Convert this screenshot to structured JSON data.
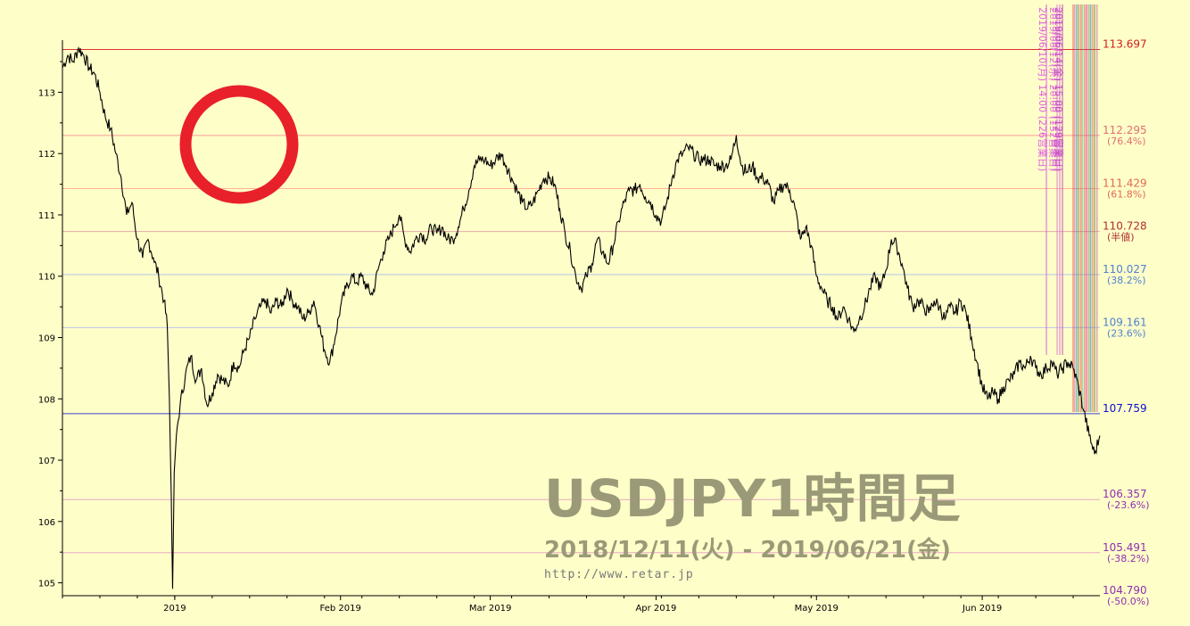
{
  "chart_data": {
    "type": "line",
    "title": "USDJPY1時間足",
    "subtitle": "2018/12/11(火) - 2019/06/21(金)",
    "source_url": "http://www.retar.jp",
    "ylim": [
      104.79,
      113.85
    ],
    "yticks": [
      105,
      106,
      107,
      108,
      109,
      110,
      111,
      112,
      113
    ],
    "xticks": [
      {
        "label": "2019",
        "day": 21
      },
      {
        "label": "Feb 2019",
        "day": 52
      },
      {
        "label": "Mar 2019",
        "day": 80
      },
      {
        "label": "Apr 2019",
        "day": 111
      },
      {
        "label": "May 2019",
        "day": 141
      },
      {
        "label": "Jun 2019",
        "day": 172
      }
    ],
    "xrange_days": [
      0,
      194
    ],
    "series": [
      {
        "values": [
          [
            0,
            113.4
          ],
          [
            1,
            113.6
          ],
          [
            2,
            113.5
          ],
          [
            3,
            113.72
          ],
          [
            4,
            113.6
          ],
          [
            5,
            113.4
          ],
          [
            6,
            113.3
          ],
          [
            7,
            113.0
          ],
          [
            8,
            112.6
          ],
          [
            9,
            112.4
          ],
          [
            10,
            112.0
          ],
          [
            11,
            111.6
          ],
          [
            12,
            111.0
          ],
          [
            13,
            111.2
          ],
          [
            14,
            110.6
          ],
          [
            15,
            110.3
          ],
          [
            16,
            110.6
          ],
          [
            17,
            110.3
          ],
          [
            18,
            110.0
          ],
          [
            19,
            109.6
          ],
          [
            19.6,
            109.2
          ],
          [
            20,
            108.0
          ],
          [
            20.35,
            106.4
          ],
          [
            20.6,
            104.9
          ],
          [
            20.9,
            106.8
          ],
          [
            21.3,
            107.4
          ],
          [
            22,
            107.9
          ],
          [
            23,
            108.4
          ],
          [
            24,
            108.7
          ],
          [
            25,
            108.3
          ],
          [
            26,
            108.5
          ],
          [
            27,
            107.9
          ],
          [
            28,
            108.1
          ],
          [
            29,
            108.4
          ],
          [
            30,
            108.3
          ],
          [
            31,
            108.2
          ],
          [
            32,
            108.6
          ],
          [
            33,
            108.5
          ],
          [
            34,
            108.8
          ],
          [
            35,
            109.0
          ],
          [
            36,
            109.3
          ],
          [
            37,
            109.5
          ],
          [
            38,
            109.6
          ],
          [
            39,
            109.4
          ],
          [
            40,
            109.6
          ],
          [
            41,
            109.5
          ],
          [
            42,
            109.8
          ],
          [
            43,
            109.6
          ],
          [
            44,
            109.5
          ],
          [
            45,
            109.3
          ],
          [
            46,
            109.4
          ],
          [
            47,
            109.6
          ],
          [
            48,
            109.2
          ],
          [
            49,
            108.8
          ],
          [
            50,
            108.6
          ],
          [
            51,
            109.0
          ],
          [
            52,
            109.5
          ],
          [
            53,
            109.8
          ],
          [
            54,
            110.0
          ],
          [
            55,
            109.9
          ],
          [
            56,
            110.0
          ],
          [
            57,
            109.8
          ],
          [
            58,
            109.7
          ],
          [
            59,
            110.1
          ],
          [
            60,
            110.4
          ],
          [
            61,
            110.6
          ],
          [
            62,
            110.8
          ],
          [
            63,
            111.0
          ],
          [
            64,
            110.6
          ],
          [
            65,
            110.4
          ],
          [
            66,
            110.6
          ],
          [
            67,
            110.7
          ],
          [
            68,
            110.6
          ],
          [
            69,
            110.8
          ],
          [
            70,
            110.7
          ],
          [
            71,
            110.8
          ],
          [
            72,
            110.6
          ],
          [
            73,
            110.6
          ],
          [
            74,
            110.8
          ],
          [
            75,
            111.1
          ],
          [
            76,
            111.4
          ],
          [
            77,
            111.8
          ],
          [
            78,
            111.9
          ],
          [
            79,
            111.9
          ],
          [
            80,
            111.8
          ],
          [
            81,
            111.9
          ],
          [
            82,
            112.0
          ],
          [
            83,
            111.8
          ],
          [
            84,
            111.6
          ],
          [
            85,
            111.4
          ],
          [
            86,
            111.2
          ],
          [
            87,
            111.1
          ],
          [
            88,
            111.2
          ],
          [
            89,
            111.4
          ],
          [
            90,
            111.6
          ],
          [
            91,
            111.6
          ],
          [
            92,
            111.5
          ],
          [
            93,
            111.1
          ],
          [
            94,
            110.7
          ],
          [
            95,
            110.4
          ],
          [
            96,
            110.0
          ],
          [
            97,
            109.8
          ],
          [
            98,
            110.0
          ],
          [
            99,
            110.2
          ],
          [
            100,
            110.6
          ],
          [
            101,
            110.4
          ],
          [
            102,
            110.2
          ],
          [
            103,
            110.5
          ],
          [
            104,
            110.9
          ],
          [
            105,
            111.2
          ],
          [
            106,
            111.4
          ],
          [
            107,
            111.4
          ],
          [
            108,
            111.5
          ],
          [
            109,
            111.3
          ],
          [
            110,
            111.2
          ],
          [
            111,
            111.0
          ],
          [
            112,
            110.9
          ],
          [
            113,
            111.2
          ],
          [
            114,
            111.6
          ],
          [
            115,
            111.9
          ],
          [
            116,
            112.0
          ],
          [
            117,
            112.1
          ],
          [
            118,
            112.0
          ],
          [
            119,
            111.9
          ],
          [
            120,
            111.9
          ],
          [
            121,
            111.9
          ],
          [
            122,
            111.8
          ],
          [
            123,
            111.8
          ],
          [
            124,
            111.8
          ],
          [
            125,
            111.9
          ],
          [
            126,
            112.3
          ],
          [
            127,
            111.8
          ],
          [
            128,
            111.7
          ],
          [
            129,
            111.8
          ],
          [
            130,
            111.6
          ],
          [
            131,
            111.6
          ],
          [
            132,
            111.5
          ],
          [
            133,
            111.2
          ],
          [
            134,
            111.4
          ],
          [
            135,
            111.5
          ],
          [
            136,
            111.4
          ],
          [
            137,
            111.1
          ],
          [
            138,
            110.6
          ],
          [
            139,
            110.8
          ],
          [
            140,
            110.5
          ],
          [
            141,
            110.0
          ],
          [
            142,
            109.8
          ],
          [
            143,
            109.6
          ],
          [
            144,
            109.5
          ],
          [
            145,
            109.3
          ],
          [
            146,
            109.5
          ],
          [
            147,
            109.3
          ],
          [
            148,
            109.1
          ],
          [
            149,
            109.3
          ],
          [
            150,
            109.5
          ],
          [
            151,
            109.8
          ],
          [
            152,
            110.0
          ],
          [
            153,
            109.8
          ],
          [
            154,
            110.1
          ],
          [
            155,
            110.6
          ],
          [
            156,
            110.5
          ],
          [
            157,
            110.2
          ],
          [
            158,
            109.8
          ],
          [
            159,
            109.5
          ],
          [
            160,
            109.6
          ],
          [
            161,
            109.5
          ],
          [
            162,
            109.4
          ],
          [
            163,
            109.6
          ],
          [
            164,
            109.5
          ],
          [
            165,
            109.3
          ],
          [
            166,
            109.5
          ],
          [
            167,
            109.4
          ],
          [
            168,
            109.6
          ],
          [
            169,
            109.4
          ],
          [
            170,
            109.0
          ],
          [
            171,
            108.6
          ],
          [
            172,
            108.2
          ],
          [
            173,
            108.0
          ],
          [
            174,
            108.1
          ],
          [
            175,
            108.0
          ],
          [
            176,
            108.2
          ],
          [
            177,
            108.3
          ],
          [
            178,
            108.4
          ],
          [
            179,
            108.6
          ],
          [
            180,
            108.5
          ],
          [
            181,
            108.7
          ],
          [
            182,
            108.5
          ],
          [
            183,
            108.4
          ],
          [
            184,
            108.5
          ],
          [
            185,
            108.6
          ],
          [
            186,
            108.4
          ],
          [
            187,
            108.5
          ],
          [
            188,
            108.6
          ],
          [
            189,
            108.5
          ],
          [
            190,
            108.2
          ],
          [
            191,
            107.8
          ],
          [
            192,
            107.4
          ],
          [
            193,
            107.1
          ],
          [
            194,
            107.4
          ]
        ]
      }
    ],
    "levels": [
      {
        "price": 113.697,
        "text": "113.697",
        "sub": "",
        "color": "#e03030",
        "label_color": "#d02020"
      },
      {
        "price": 112.295,
        "text": "112.295",
        "sub": "(76.4%)",
        "color": "#ff9a9a",
        "label_color": "#e07070"
      },
      {
        "price": 111.429,
        "text": "111.429",
        "sub": "(61.8%)",
        "color": "#ffb494",
        "label_color": "#e06a50"
      },
      {
        "price": 110.728,
        "text": "110.728",
        "sub": "(半値)",
        "color": "#e8a8a8",
        "label_color": "#b03030"
      },
      {
        "price": 110.027,
        "text": "110.027",
        "sub": "(38.2%)",
        "color": "#b8c4e8",
        "label_color": "#5080d0"
      },
      {
        "price": 109.161,
        "text": "109.161",
        "sub": "(23.6%)",
        "color": "#b8c4e8",
        "label_color": "#5080d0"
      },
      {
        "price": 107.759,
        "text": "107.759",
        "sub": "",
        "color": "#4040d0",
        "label_color": "#1010d0"
      },
      {
        "price": 106.357,
        "text": "106.357",
        "sub": "(-23.6%)",
        "color": "#e8a8c8",
        "label_color": "#9030b0"
      },
      {
        "price": 105.491,
        "text": "105.491",
        "sub": "(-38.2%)",
        "color": "#e8a8c8",
        "label_color": "#9030b0"
      },
      {
        "price": 104.79,
        "text": "104.790",
        "sub": "(-50.0%)",
        "color": "#e8a8c8",
        "label_color": "#9030b0"
      }
    ],
    "vertical_markers": [
      {
        "day": 184.0,
        "text": "2019/06/10(月) 14:00 (226営業日)",
        "color": "#e060e0"
      },
      {
        "day": 186.0,
        "text": "2019/06/12(水) 20:00 (152営業日)",
        "color": "#e080d0"
      },
      {
        "day": 186.5,
        "text": "2019/06/13(木) 15:00 (129営業日)",
        "color": "#e070e0"
      },
      {
        "day": 187.0,
        "text": "2019/06/14(金) 15:00 (129営業日)",
        "color": "#c050c0"
      }
    ],
    "grid": false,
    "legend": "none",
    "annotation": "red circle"
  },
  "labels": {
    "title": "USDJPY1時間足",
    "subtitle": "2018/12/11(火) - 2019/06/21(金)",
    "url": "http://www.retar.jp"
  }
}
